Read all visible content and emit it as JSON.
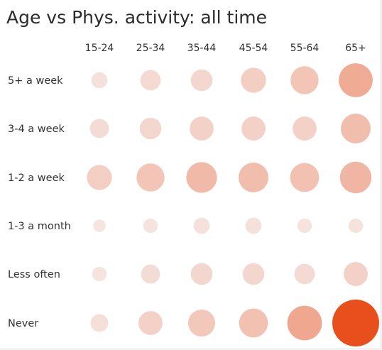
{
  "chart_data": {
    "type": "bubble",
    "title": "Age vs Phys. activity: all time",
    "x_categories": [
      "15-24",
      "25-34",
      "35-44",
      "45-54",
      "55-64",
      "65+"
    ],
    "y_categories": [
      "5+ a week",
      "3-4 a week",
      "1-2 a week",
      "1-3 a month",
      "Less often",
      "Never"
    ],
    "values": [
      [
        5,
        8,
        9,
        12,
        15,
        22
      ],
      [
        7,
        9,
        11,
        11,
        11,
        17
      ],
      [
        12,
        15,
        18,
        17,
        16,
        19
      ],
      [
        3,
        4,
        5,
        5,
        4,
        4
      ],
      [
        4,
        7,
        9,
        9,
        8,
        11
      ],
      [
        6,
        11,
        14,
        16,
        23,
        42
      ]
    ],
    "value_max": 42,
    "color_scale": [
      "#f5e9e6",
      "#e84f1c"
    ]
  }
}
